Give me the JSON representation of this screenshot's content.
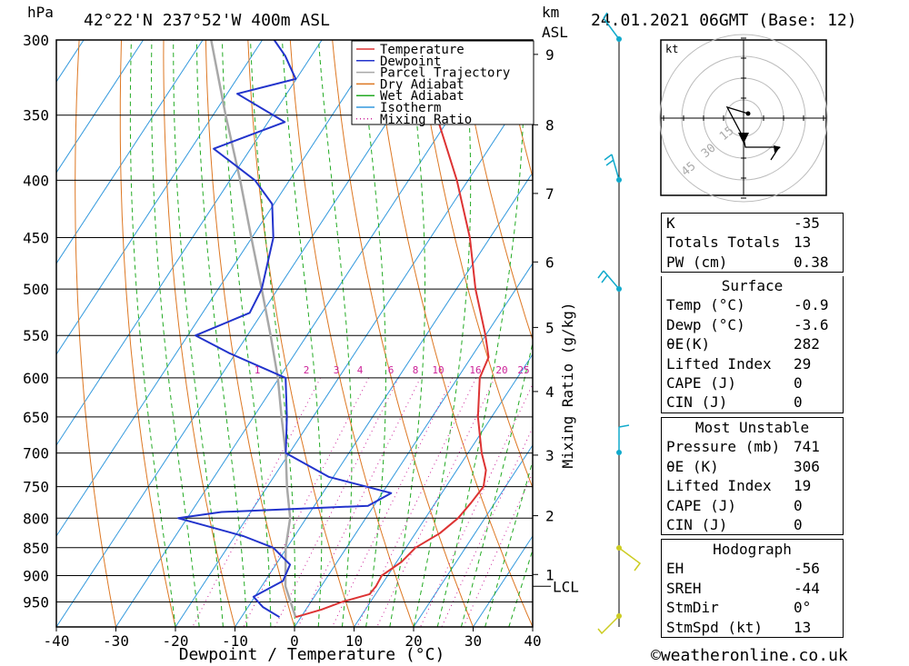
{
  "header": {
    "pressure_unit": "hPa",
    "location": "42°22'N  237°52'W  400m  ASL",
    "height_unit_km": "km",
    "height_unit_asl": "ASL",
    "datetime": "24.01.2021  06GMT  (Base: 12)"
  },
  "chart_data": {
    "type": "skew-t",
    "xlabel": "Dewpoint / Temperature (°C)",
    "ylabel_right": "Mixing Ratio (g/kg)",
    "pressure_levels": [
      300,
      350,
      400,
      450,
      500,
      550,
      600,
      650,
      700,
      750,
      800,
      850,
      900,
      950
    ],
    "pressure_range": [
      300,
      1000
    ],
    "x_ticks": [
      -40,
      -30,
      -20,
      -10,
      0,
      10,
      20,
      30,
      40
    ],
    "x_range": [
      -40,
      40
    ],
    "km_ticks": [
      {
        "km": 1,
        "p": 898
      },
      {
        "km": 2,
        "p": 796
      },
      {
        "km": 3,
        "p": 703
      },
      {
        "km": 4,
        "p": 617
      },
      {
        "km": 5,
        "p": 541
      },
      {
        "km": 6,
        "p": 473
      },
      {
        "km": 7,
        "p": 411
      },
      {
        "km": 8,
        "p": 357
      },
      {
        "km": 9,
        "p": 309
      }
    ],
    "lcl": {
      "label": "LCL",
      "p": 920
    },
    "mixing_ratio_labels": [
      "1",
      "2",
      "3",
      "4",
      "6",
      "8",
      "10",
      "16",
      "20",
      "25"
    ],
    "mixing_ratio_values": [
      1,
      2,
      3,
      4,
      6,
      8,
      10,
      16,
      20,
      25
    ],
    "legend": [
      {
        "name": "Temperature",
        "color": "#dd3333",
        "style": "solid"
      },
      {
        "name": "Dewpoint",
        "color": "#2233cc",
        "style": "solid"
      },
      {
        "name": "Parcel Trajectory",
        "color": "#a8a8a8",
        "style": "solid"
      },
      {
        "name": "Dry Adiabat",
        "color": "#dd7722",
        "style": "solid"
      },
      {
        "name": "Wet Adiabat",
        "color": "#22aa22",
        "style": "solid"
      },
      {
        "name": "Isotherm",
        "color": "#3399dd",
        "style": "solid"
      },
      {
        "name": "Mixing Ratio",
        "color": "#cc2299",
        "style": "dotted"
      }
    ],
    "temperature": [
      {
        "p": 980,
        "t": -0.9
      },
      {
        "p": 965,
        "t": 2.6
      },
      {
        "p": 950,
        "t": 5.2
      },
      {
        "p": 935,
        "t": 9.0
      },
      {
        "p": 920,
        "t": 9.2
      },
      {
        "p": 900,
        "t": 9.0
      },
      {
        "p": 875,
        "t": 10.8
      },
      {
        "p": 850,
        "t": 11.6
      },
      {
        "p": 825,
        "t": 14.1
      },
      {
        "p": 800,
        "t": 15.5
      },
      {
        "p": 775,
        "t": 16.0
      },
      {
        "p": 750,
        "t": 16.3
      },
      {
        "p": 725,
        "t": 14.9
      },
      {
        "p": 700,
        "t": 12.3
      },
      {
        "p": 650,
        "t": 7.7
      },
      {
        "p": 600,
        "t": 3.7
      },
      {
        "p": 575,
        "t": 2.9
      },
      {
        "p": 550,
        "t": 0.0
      },
      {
        "p": 500,
        "t": -6.8
      },
      {
        "p": 450,
        "t": -13.4
      },
      {
        "p": 400,
        "t": -21.9
      },
      {
        "p": 350,
        "t": -32.5
      },
      {
        "p": 320,
        "t": -39.1
      },
      {
        "p": 300,
        "t": -44.9
      }
    ],
    "dewpoint": [
      {
        "p": 980,
        "t": -3.6
      },
      {
        "p": 960,
        "t": -7.5
      },
      {
        "p": 940,
        "t": -10.2
      },
      {
        "p": 910,
        "t": -7.0
      },
      {
        "p": 880,
        "t": -7.6
      },
      {
        "p": 850,
        "t": -12.3
      },
      {
        "p": 830,
        "t": -18.6
      },
      {
        "p": 800,
        "t": -31.5
      },
      {
        "p": 790,
        "t": -24.9
      },
      {
        "p": 780,
        "t": -1.0
      },
      {
        "p": 760,
        "t": 1.5
      },
      {
        "p": 735,
        "t": -10.8
      },
      {
        "p": 700,
        "t": -20.6
      },
      {
        "p": 650,
        "t": -24.4
      },
      {
        "p": 600,
        "t": -28.9
      },
      {
        "p": 570,
        "t": -41.2
      },
      {
        "p": 550,
        "t": -48.7
      },
      {
        "p": 525,
        "t": -42.1
      },
      {
        "p": 500,
        "t": -42.7
      },
      {
        "p": 450,
        "t": -46.4
      },
      {
        "p": 420,
        "t": -50.3
      },
      {
        "p": 400,
        "t": -55.8
      },
      {
        "p": 375,
        "t": -66.2
      },
      {
        "p": 355,
        "t": -57.2
      },
      {
        "p": 335,
        "t": -68.3
      },
      {
        "p": 325,
        "t": -60.1
      },
      {
        "p": 310,
        "t": -64.4
      },
      {
        "p": 300,
        "t": -68.0
      }
    ],
    "parcel": [
      {
        "p": 980,
        "t": -0.9
      },
      {
        "p": 920,
        "t": -6.0
      },
      {
        "p": 850,
        "t": -10.2
      },
      {
        "p": 800,
        "t": -12.7
      },
      {
        "p": 750,
        "t": -16.7
      },
      {
        "p": 700,
        "t": -20.6
      },
      {
        "p": 650,
        "t": -25.3
      },
      {
        "p": 600,
        "t": -30.2
      },
      {
        "p": 550,
        "t": -36.1
      },
      {
        "p": 500,
        "t": -42.7
      },
      {
        "p": 450,
        "t": -50.1
      },
      {
        "p": 400,
        "t": -58.3
      },
      {
        "p": 350,
        "t": -67.9
      },
      {
        "p": 300,
        "t": -78.6
      }
    ]
  },
  "hodograph": {
    "unit": "kt",
    "ring_labels": [
      "15",
      "30",
      "45"
    ]
  },
  "indices": {
    "rows": [
      {
        "key": "K",
        "value": "-35"
      },
      {
        "key": "Totals Totals",
        "value": "13"
      },
      {
        "key": "PW (cm)",
        "value": "0.38"
      }
    ]
  },
  "surface": {
    "title": "Surface",
    "rows": [
      {
        "key": "Temp (°C)",
        "value": "-0.9"
      },
      {
        "key": "Dewp (°C)",
        "value": "-3.6"
      },
      {
        "key": "θE(K)",
        "value": "282"
      },
      {
        "key": "Lifted Index",
        "value": "29"
      },
      {
        "key": "CAPE (J)",
        "value": "0"
      },
      {
        "key": "CIN (J)",
        "value": "0"
      }
    ]
  },
  "most_unstable": {
    "title": "Most Unstable",
    "rows": [
      {
        "key": "Pressure (mb)",
        "value": "741"
      },
      {
        "key": "θE (K)",
        "value": "306"
      },
      {
        "key": "Lifted Index",
        "value": "19"
      },
      {
        "key": "CAPE (J)",
        "value": "0"
      },
      {
        "key": "CIN (J)",
        "value": "0"
      }
    ]
  },
  "hodograph_table": {
    "title": "Hodograph",
    "rows": [
      {
        "key": "EH",
        "value": "-56"
      },
      {
        "key": "SREH",
        "value": "-44"
      },
      {
        "key": "StmDir",
        "value": "0°"
      },
      {
        "key": "StmSpd (kt)",
        "value": "13"
      }
    ]
  },
  "footer": {
    "copyright": "©weatheronline.co.uk"
  }
}
